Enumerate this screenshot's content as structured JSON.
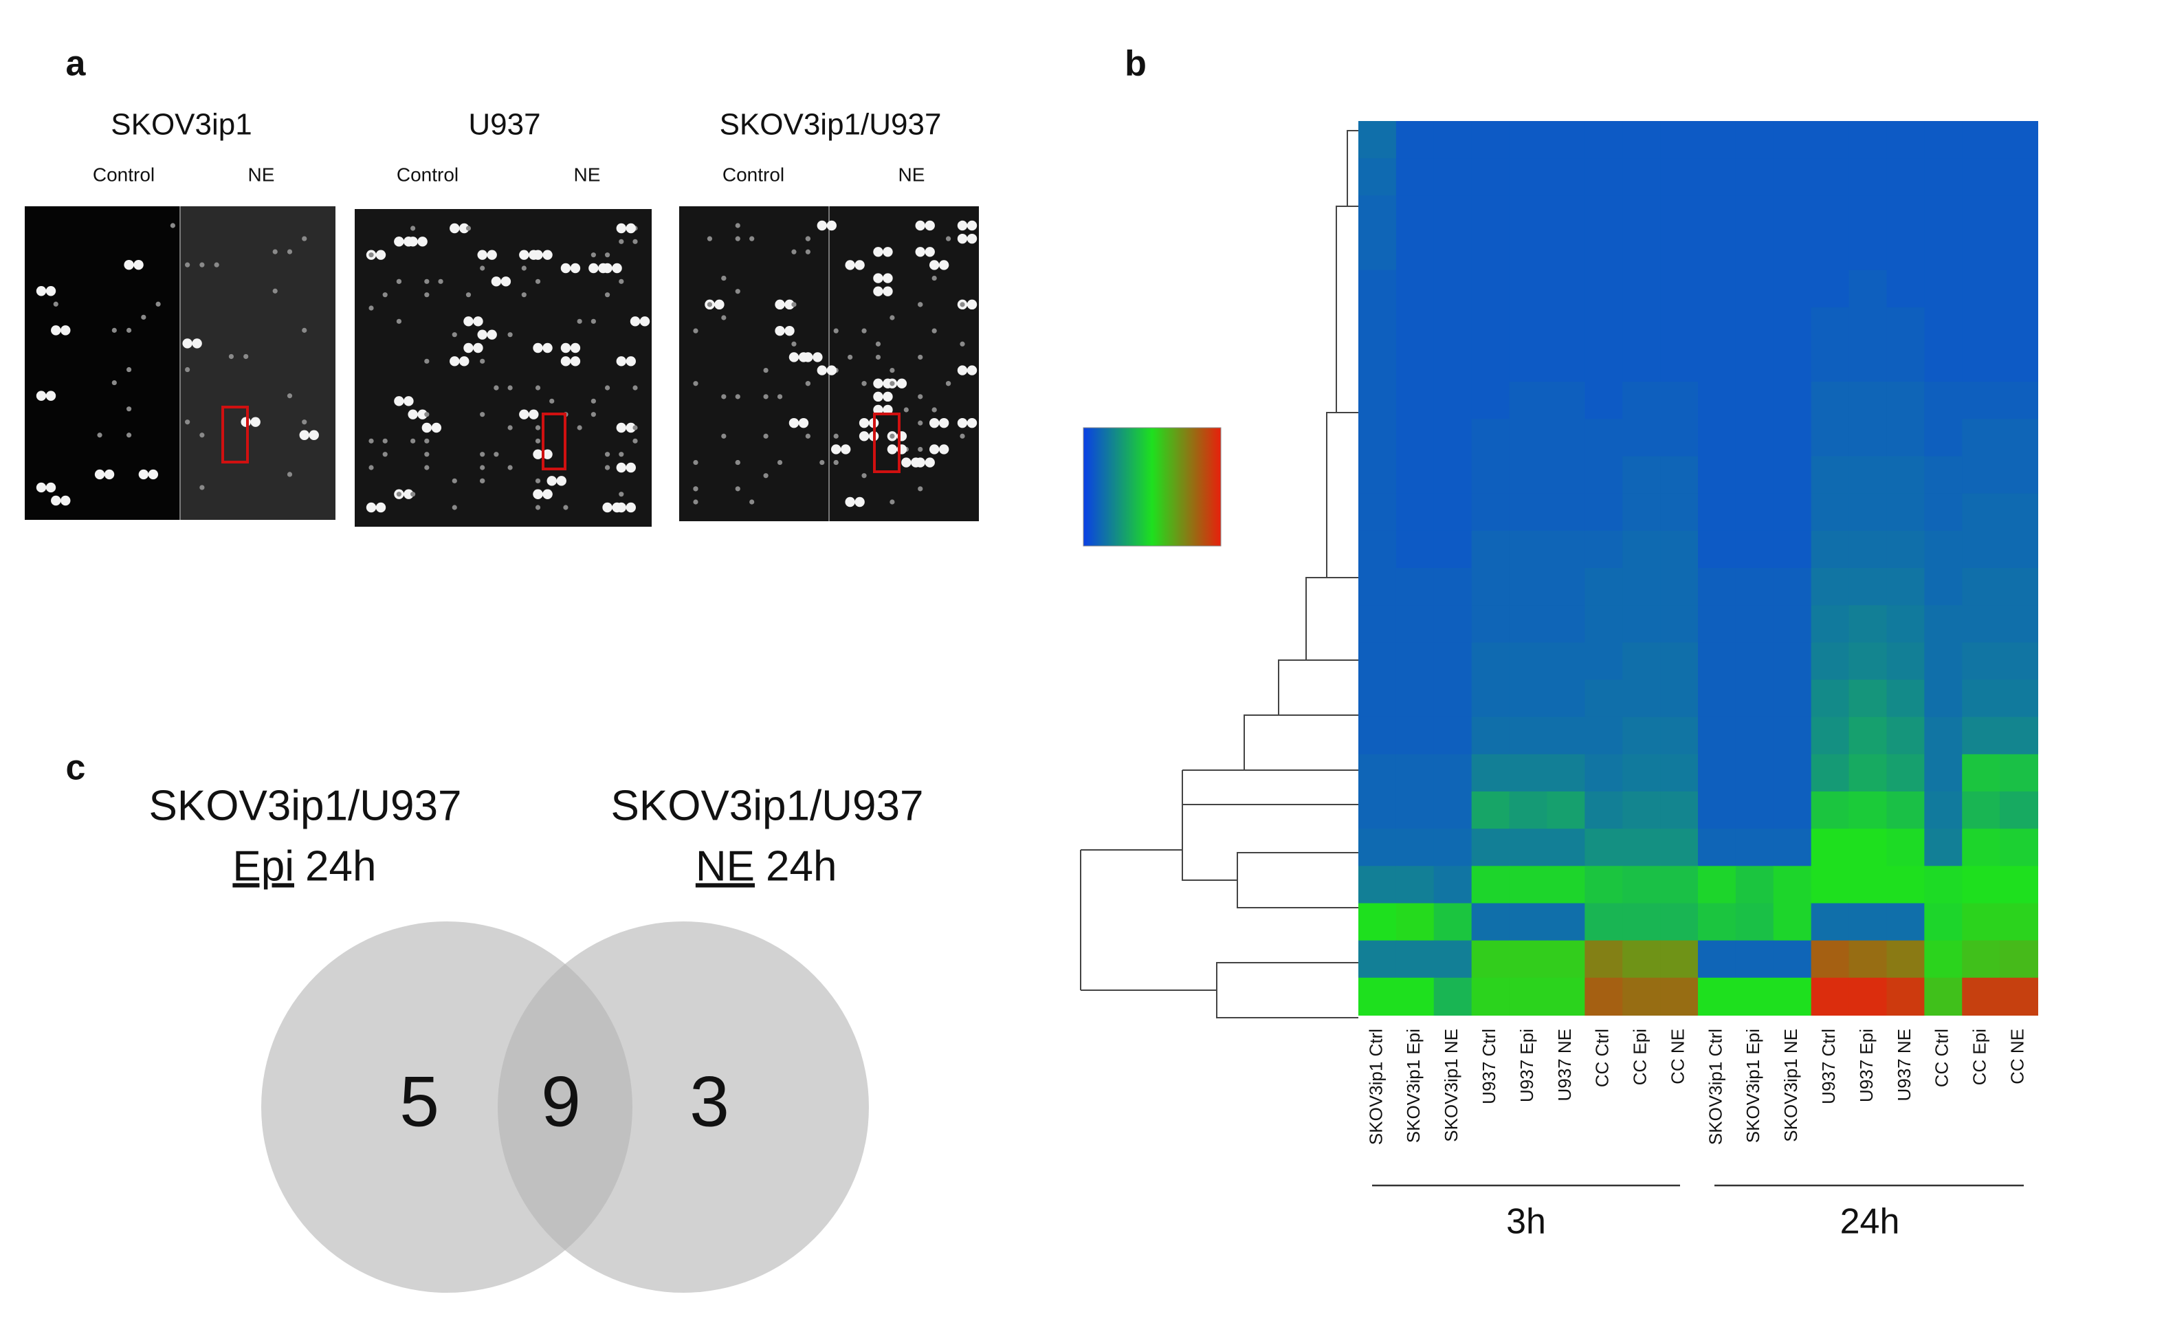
{
  "panel_a": {
    "label": "a",
    "blots": [
      {
        "title": "SKOV3ip1",
        "conditions": [
          "Control",
          "NE"
        ]
      },
      {
        "title": "U937",
        "conditions": [
          "Control",
          "NE"
        ]
      },
      {
        "title": "SKOV3ip1/U937",
        "conditions": [
          "Control",
          "NE"
        ]
      }
    ]
  },
  "panel_b": {
    "label": "b",
    "heatmap": {
      "columns": [
        "SKOV3ip1 Ctrl",
        "SKOV3ip1 Epi",
        "SKOV3ip1 NE",
        "U937 Ctrl",
        "U937 Epi",
        "U937 NE",
        "CC Ctrl",
        "CC Epi",
        "CC NE",
        "SKOV3ip1 Ctrl",
        "SKOV3ip1 Epi",
        "SKOV3ip1 NE",
        "U937 Ctrl",
        "U937 Epi",
        "U937 NE",
        "CC Ctrl",
        "CC Epi",
        "CC NE"
      ],
      "clim": [
        0,
        6000
      ],
      "values": [
        [
          900,
          500,
          500,
          500,
          500,
          500,
          500,
          500,
          500,
          500,
          500,
          500,
          500,
          500,
          500,
          500,
          500,
          500
        ],
        [
          800,
          500,
          500,
          500,
          500,
          500,
          500,
          500,
          500,
          500,
          500,
          500,
          500,
          500,
          500,
          500,
          500,
          500
        ],
        [
          700,
          500,
          500,
          500,
          500,
          500,
          500,
          500,
          500,
          500,
          500,
          500,
          500,
          500,
          500,
          500,
          500,
          500
        ],
        [
          700,
          500,
          500,
          500,
          500,
          500,
          500,
          500,
          500,
          500,
          500,
          500,
          500,
          500,
          500,
          500,
          500,
          500
        ],
        [
          600,
          500,
          500,
          500,
          500,
          500,
          500,
          500,
          500,
          500,
          500,
          500,
          500,
          600,
          500,
          500,
          500,
          500
        ],
        [
          600,
          500,
          500,
          500,
          500,
          500,
          500,
          500,
          500,
          500,
          500,
          500,
          600,
          600,
          600,
          500,
          500,
          500
        ],
        [
          600,
          500,
          500,
          500,
          500,
          500,
          500,
          500,
          500,
          500,
          500,
          500,
          600,
          600,
          600,
          500,
          500,
          500
        ],
        [
          600,
          500,
          500,
          500,
          600,
          600,
          500,
          600,
          600,
          500,
          500,
          500,
          700,
          700,
          700,
          600,
          600,
          600
        ],
        [
          600,
          500,
          500,
          600,
          600,
          600,
          600,
          600,
          600,
          500,
          500,
          500,
          700,
          700,
          700,
          600,
          700,
          700
        ],
        [
          600,
          500,
          500,
          600,
          600,
          600,
          600,
          700,
          700,
          500,
          500,
          500,
          800,
          800,
          800,
          700,
          700,
          700
        ],
        [
          600,
          500,
          500,
          600,
          600,
          600,
          600,
          700,
          700,
          500,
          500,
          500,
          800,
          800,
          800,
          700,
          800,
          800
        ],
        [
          600,
          500,
          500,
          700,
          700,
          700,
          700,
          800,
          800,
          500,
          500,
          500,
          900,
          900,
          900,
          800,
          800,
          800
        ],
        [
          600,
          600,
          600,
          700,
          700,
          700,
          800,
          800,
          800,
          600,
          600,
          600,
          1000,
          1000,
          1000,
          800,
          900,
          900
        ],
        [
          600,
          600,
          600,
          700,
          700,
          700,
          800,
          800,
          800,
          600,
          600,
          600,
          1100,
          1200,
          1100,
          900,
          900,
          900
        ],
        [
          600,
          600,
          600,
          800,
          800,
          800,
          800,
          900,
          900,
          600,
          600,
          600,
          1200,
          1300,
          1200,
          900,
          1000,
          1000
        ],
        [
          600,
          600,
          600,
          800,
          800,
          800,
          900,
          900,
          900,
          600,
          600,
          600,
          1400,
          1600,
          1400,
          900,
          1100,
          1100
        ],
        [
          600,
          600,
          600,
          900,
          900,
          900,
          900,
          1000,
          1000,
          600,
          600,
          600,
          1500,
          1800,
          1600,
          1000,
          1300,
          1300
        ],
        [
          700,
          700,
          700,
          1200,
          1200,
          1200,
          1000,
          1100,
          1100,
          600,
          600,
          600,
          1700,
          2000,
          1800,
          1000,
          2500,
          2400
        ],
        [
          700,
          700,
          700,
          1900,
          1700,
          1800,
          1200,
          1300,
          1300,
          600,
          600,
          600,
          2500,
          2600,
          2400,
          1100,
          2200,
          2000
        ],
        [
          800,
          800,
          800,
          1200,
          1200,
          1200,
          1500,
          1500,
          1500,
          700,
          700,
          700,
          3000,
          3000,
          2900,
          1200,
          2800,
          2700
        ],
        [
          1200,
          1200,
          1000,
          2800,
          2800,
          2800,
          2500,
          2400,
          2400,
          2800,
          2500,
          2800,
          3000,
          3000,
          3000,
          2900,
          3000,
          3000
        ],
        [
          3000,
          3100,
          2500,
          900,
          900,
          900,
          2200,
          2200,
          2200,
          2500,
          2400,
          2800,
          900,
          900,
          900,
          2800,
          3200,
          3200
        ],
        [
          1200,
          1200,
          1200,
          3300,
          3300,
          3300,
          4500,
          4200,
          4200,
          700,
          700,
          700,
          5000,
          4800,
          4600,
          3200,
          3500,
          3600
        ],
        [
          3000,
          3000,
          2200,
          3200,
          3200,
          3200,
          5000,
          4800,
          4800,
          3000,
          3000,
          3000,
          5800,
          5800,
          5600,
          3500,
          5500,
          5500
        ]
      ]
    },
    "groups": [
      {
        "label": "3h"
      },
      {
        "label": "24h"
      }
    ]
  },
  "panel_c": {
    "label": "c",
    "sets": [
      {
        "title": "SKOV3ip1/U937",
        "treatment": "Epi",
        "time": "24h"
      },
      {
        "title": "SKOV3ip1/U937",
        "treatment": "NE",
        "time": "24h"
      }
    ],
    "counts": {
      "left_only": 5,
      "both": 9,
      "right_only": 3
    }
  }
}
